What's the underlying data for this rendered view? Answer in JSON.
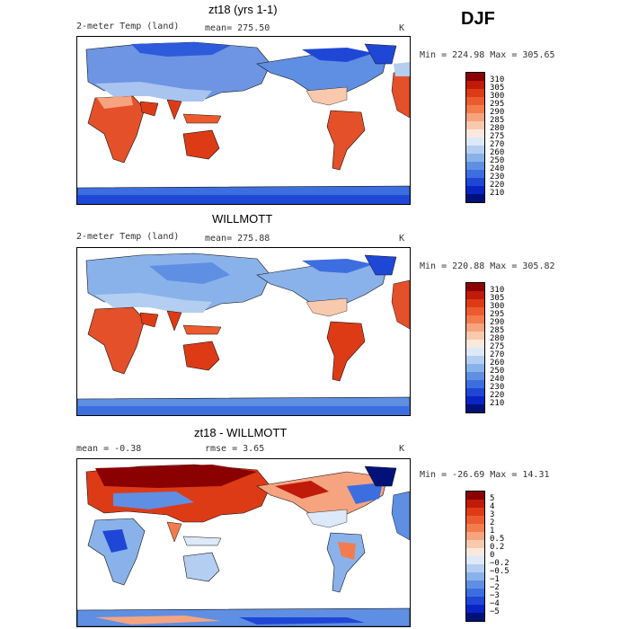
{
  "season": "DJF",
  "panels": [
    {
      "title": "zt18 (yrs 1-1)",
      "left_label": "2-meter Temp (land)",
      "mean_text": "mean= 275.50",
      "unit": "K",
      "minmax": "Min = 224.98 Max = 305.65",
      "colorbar": {
        "labels": [
          "310",
          "305",
          "300",
          "295",
          "290",
          "285",
          "280",
          "275",
          "270",
          "260",
          "250",
          "240",
          "230",
          "220",
          "210"
        ],
        "colors": [
          "#8b0000",
          "#c01a0a",
          "#dd3b16",
          "#ec5b2e",
          "#f27c4e",
          "#f6a47f",
          "#f9c9ad",
          "#fbe8dc",
          "#dce9f8",
          "#b3cef1",
          "#8ab2ea",
          "#5f8fe2",
          "#3d6ee0",
          "#1f47d6",
          "#0a24c4",
          "#00127a"
        ]
      }
    },
    {
      "title": "WILLMOTT",
      "left_label": "2-meter Temp (land)",
      "mean_text": "mean= 275.88",
      "unit": "K",
      "minmax": "Min = 220.88 Max = 305.82",
      "colorbar": {
        "labels": [
          "310",
          "305",
          "300",
          "295",
          "290",
          "285",
          "280",
          "275",
          "270",
          "260",
          "250",
          "240",
          "230",
          "220",
          "210"
        ],
        "colors": [
          "#8b0000",
          "#c01a0a",
          "#dd3b16",
          "#ec5b2e",
          "#f27c4e",
          "#f6a47f",
          "#f9c9ad",
          "#fbe8dc",
          "#dce9f8",
          "#b3cef1",
          "#8ab2ea",
          "#5f8fe2",
          "#3d6ee0",
          "#1f47d6",
          "#0a24c4",
          "#00127a"
        ]
      }
    },
    {
      "title": "zt18 - WILLMOTT",
      "mean_text": "mean =   -0.38",
      "rmse_text": "rmse =    3.65",
      "unit": "K",
      "minmax": "Min = -26.69 Max =  14.31",
      "colorbar": {
        "labels": [
          "5",
          "4",
          "3",
          "2",
          "1",
          "0.5",
          "0.2",
          "0",
          "−0.2",
          "−0.5",
          "−1",
          "−2",
          "−3",
          "−4",
          "−5"
        ],
        "colors": [
          "#8b0000",
          "#c01a0a",
          "#dd3b16",
          "#ec5b2e",
          "#f27c4e",
          "#f6a47f",
          "#f9c9ad",
          "#fbe8dc",
          "#dce9f8",
          "#b3cef1",
          "#8ab2ea",
          "#5f8fe2",
          "#3d6ee0",
          "#1f47d6",
          "#0a24c4",
          "#00127a"
        ]
      }
    }
  ]
}
